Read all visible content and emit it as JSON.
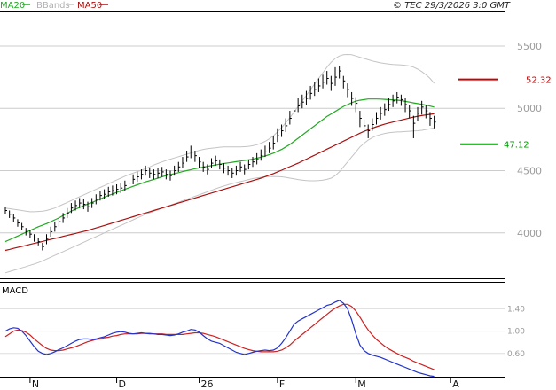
{
  "header": {
    "ma20_label": "MA20",
    "bbands_label": "BBands",
    "ma50_label": "MA50",
    "copyright": "© TEC 29/3/2026 3:0 GMT"
  },
  "levels": {
    "resistance_label": "52.32",
    "resistance_value": 5232,
    "support_label": "47.12",
    "support_value": 4712
  },
  "macd": {
    "label": "MACD"
  },
  "colors": {
    "price": "#000000",
    "ma20": "#22aa22",
    "ma50": "#aa1111",
    "bbands": "#c4c4c4",
    "grid": "#cccccc",
    "resistance": "#cc0000",
    "support": "#009900",
    "macd_line": "#2233cc",
    "signal_line": "#cc2222"
  },
  "chart_data": [
    {
      "type": "line",
      "name": "price-panel",
      "y_ticks": [
        {
          "value": 4000,
          "label": "4000"
        },
        {
          "value": 4500,
          "label": "4500"
        },
        {
          "value": 5000,
          "label": "5000"
        },
        {
          "value": 5500,
          "label": "5500"
        }
      ],
      "ylim": [
        3650,
        5770
      ],
      "x_ticks": [
        {
          "index": 6,
          "label": "N"
        },
        {
          "index": 27,
          "label": "D"
        },
        {
          "index": 47,
          "label": "26"
        },
        {
          "index": 66,
          "label": "F"
        },
        {
          "index": 85,
          "label": "M"
        },
        {
          "index": 108,
          "label": "A"
        }
      ],
      "close": [
        4180,
        4150,
        4120,
        4080,
        4050,
        4010,
        3990,
        3960,
        3930,
        3890,
        3950,
        4010,
        4050,
        4090,
        4120,
        4160,
        4200,
        4220,
        4240,
        4230,
        4210,
        4240,
        4270,
        4300,
        4310,
        4330,
        4340,
        4350,
        4360,
        4380,
        4400,
        4430,
        4450,
        4470,
        4500,
        4480,
        4470,
        4480,
        4490,
        4470,
        4460,
        4500,
        4530,
        4560,
        4610,
        4650,
        4620,
        4570,
        4530,
        4510,
        4560,
        4580,
        4550,
        4520,
        4500,
        4480,
        4500,
        4530,
        4510,
        4550,
        4570,
        4590,
        4620,
        4650,
        4680,
        4720,
        4780,
        4820,
        4860,
        4920,
        4980,
        5020,
        5050,
        5080,
        5120,
        5150,
        5180,
        5210,
        5240,
        5200,
        5250,
        5300,
        5220,
        5150,
        5080,
        5040,
        4920,
        4860,
        4820,
        4870,
        4920,
        4960,
        4990,
        5030,
        5060,
        5090,
        5070,
        5030,
        4980,
        4880,
        4960,
        5010,
        4980,
        4920,
        4890
      ],
      "high": [
        4210,
        4180,
        4150,
        4110,
        4080,
        4040,
        4020,
        3990,
        3960,
        3920,
        3990,
        4050,
        4090,
        4130,
        4160,
        4200,
        4240,
        4260,
        4280,
        4270,
        4250,
        4280,
        4310,
        4340,
        4350,
        4370,
        4380,
        4390,
        4400,
        4420,
        4440,
        4470,
        4490,
        4510,
        4540,
        4520,
        4510,
        4520,
        4530,
        4510,
        4500,
        4540,
        4570,
        4610,
        4660,
        4700,
        4660,
        4610,
        4570,
        4550,
        4600,
        4620,
        4590,
        4560,
        4540,
        4520,
        4540,
        4570,
        4550,
        4590,
        4610,
        4640,
        4670,
        4700,
        4730,
        4780,
        4840,
        4870,
        4920,
        4980,
        5040,
        5080,
        5110,
        5140,
        5180,
        5210,
        5240,
        5270,
        5300,
        5260,
        5330,
        5340,
        5260,
        5200,
        5130,
        5090,
        4980,
        4910,
        4870,
        4920,
        4970,
        5010,
        5040,
        5080,
        5110,
        5130,
        5110,
        5080,
        5030,
        4940,
        5010,
        5060,
        5030,
        4970,
        4940
      ],
      "low": [
        4150,
        4120,
        4090,
        4050,
        4020,
        3980,
        3960,
        3930,
        3900,
        3860,
        3910,
        3970,
        4010,
        4050,
        4080,
        4120,
        4160,
        4180,
        4200,
        4190,
        4170,
        4200,
        4230,
        4260,
        4270,
        4290,
        4300,
        4310,
        4320,
        4340,
        4360,
        4390,
        4410,
        4430,
        4460,
        4440,
        4430,
        4440,
        4450,
        4430,
        4420,
        4460,
        4490,
        4520,
        4570,
        4600,
        4570,
        4520,
        4490,
        4470,
        4520,
        4540,
        4510,
        4480,
        4460,
        4440,
        4460,
        4490,
        4470,
        4510,
        4530,
        4550,
        4580,
        4610,
        4640,
        4670,
        4730,
        4770,
        4810,
        4870,
        4930,
        4970,
        5000,
        5030,
        5070,
        5100,
        5130,
        5160,
        5190,
        5140,
        5180,
        5240,
        5160,
        5090,
        5020,
        4970,
        4850,
        4800,
        4760,
        4820,
        4870,
        4910,
        4940,
        4980,
        5010,
        5040,
        5020,
        4970,
        4920,
        4760,
        4900,
        4950,
        4920,
        4860,
        4840
      ],
      "ma20": [
        3930,
        3945,
        3960,
        3975,
        3990,
        4005,
        4020,
        4035,
        4050,
        4062,
        4075,
        4090,
        4105,
        4120,
        4140,
        4158,
        4175,
        4190,
        4205,
        4218,
        4232,
        4245,
        4258,
        4272,
        4286,
        4300,
        4312,
        4325,
        4338,
        4350,
        4362,
        4374,
        4386,
        4398,
        4410,
        4420,
        4430,
        4440,
        4450,
        4460,
        4468,
        4476,
        4484,
        4492,
        4500,
        4508,
        4516,
        4522,
        4528,
        4534,
        4540,
        4546,
        4552,
        4557,
        4562,
        4567,
        4572,
        4577,
        4582,
        4587,
        4592,
        4600,
        4608,
        4618,
        4628,
        4640,
        4655,
        4670,
        4690,
        4710,
        4735,
        4760,
        4785,
        4810,
        4835,
        4860,
        4885,
        4910,
        4935,
        4955,
        4975,
        4995,
        5015,
        5030,
        5045,
        5058,
        5065,
        5070,
        5075,
        5075,
        5075,
        5074,
        5072,
        5070,
        5068,
        5066,
        5062,
        5056,
        5050,
        5044,
        5038,
        5032,
        5026,
        5018,
        5010
      ],
      "ma50": [
        3860,
        3868,
        3876,
        3884,
        3892,
        3900,
        3908,
        3916,
        3924,
        3932,
        3940,
        3948,
        3956,
        3964,
        3972,
        3980,
        3988,
        3996,
        4004,
        4012,
        4020,
        4030,
        4040,
        4050,
        4060,
        4070,
        4080,
        4090,
        4100,
        4110,
        4120,
        4130,
        4140,
        4150,
        4160,
        4170,
        4180,
        4190,
        4200,
        4210,
        4220,
        4230,
        4240,
        4250,
        4260,
        4270,
        4280,
        4290,
        4300,
        4310,
        4320,
        4330,
        4340,
        4350,
        4360,
        4370,
        4380,
        4390,
        4400,
        4410,
        4420,
        4430,
        4440,
        4452,
        4464,
        4476,
        4490,
        4504,
        4518,
        4532,
        4546,
        4560,
        4576,
        4592,
        4608,
        4624,
        4640,
        4656,
        4672,
        4688,
        4704,
        4720,
        4736,
        4752,
        4768,
        4784,
        4800,
        4815,
        4828,
        4840,
        4852,
        4863,
        4873,
        4882,
        4890,
        4898,
        4906,
        4914,
        4922,
        4930,
        4936,
        4942,
        4947,
        4952,
        4956
      ],
      "bb_upper": [
        4200,
        4195,
        4190,
        4185,
        4180,
        4175,
        4170,
        4170,
        4172,
        4175,
        4180,
        4190,
        4200,
        4215,
        4230,
        4245,
        4260,
        4275,
        4290,
        4305,
        4320,
        4335,
        4350,
        4365,
        4380,
        4395,
        4410,
        4425,
        4440,
        4455,
        4468,
        4480,
        4492,
        4504,
        4516,
        4530,
        4545,
        4558,
        4570,
        4582,
        4592,
        4602,
        4612,
        4622,
        4632,
        4642,
        4652,
        4662,
        4670,
        4676,
        4680,
        4684,
        4688,
        4690,
        4690,
        4690,
        4690,
        4690,
        4692,
        4695,
        4700,
        4708,
        4720,
        4735,
        4755,
        4780,
        4810,
        4845,
        4885,
        4925,
        4970,
        5015,
        5060,
        5105,
        5150,
        5195,
        5240,
        5285,
        5330,
        5370,
        5400,
        5420,
        5430,
        5432,
        5430,
        5420,
        5410,
        5400,
        5390,
        5380,
        5372,
        5365,
        5360,
        5356,
        5352,
        5350,
        5348,
        5345,
        5340,
        5330,
        5315,
        5295,
        5270,
        5240,
        5200
      ],
      "bb_lower": [
        3680,
        3690,
        3700,
        3710,
        3720,
        3730,
        3740,
        3750,
        3762,
        3775,
        3790,
        3805,
        3820,
        3835,
        3850,
        3865,
        3880,
        3895,
        3910,
        3925,
        3940,
        3955,
        3970,
        3985,
        4000,
        4015,
        4030,
        4045,
        4060,
        4075,
        4090,
        4105,
        4120,
        4135,
        4150,
        4162,
        4174,
        4186,
        4198,
        4210,
        4222,
        4234,
        4246,
        4258,
        4270,
        4282,
        4294,
        4306,
        4318,
        4330,
        4342,
        4354,
        4366,
        4376,
        4386,
        4396,
        4404,
        4412,
        4420,
        4428,
        4436,
        4442,
        4446,
        4450,
        4452,
        4453,
        4452,
        4450,
        4446,
        4440,
        4434,
        4428,
        4424,
        4420,
        4418,
        4418,
        4420,
        4424,
        4430,
        4440,
        4460,
        4490,
        4530,
        4570,
        4610,
        4650,
        4690,
        4720,
        4745,
        4765,
        4780,
        4790,
        4798,
        4804,
        4808,
        4810,
        4812,
        4814,
        4816,
        4818,
        4820,
        4824,
        4830,
        4836,
        4842
      ]
    },
    {
      "type": "line",
      "name": "macd-panel",
      "y_ticks": [
        {
          "value": 60,
          "label": "0.60"
        },
        {
          "value": 100,
          "label": "1.00"
        },
        {
          "value": 140,
          "label": "1.40"
        }
      ],
      "ylim": [
        20,
        185
      ],
      "macd": [
        100,
        104,
        106,
        105,
        100,
        92,
        82,
        72,
        64,
        60,
        58,
        60,
        63,
        67,
        70,
        74,
        78,
        82,
        85,
        86,
        86,
        85,
        86,
        88,
        90,
        93,
        96,
        98,
        99,
        98,
        96,
        95,
        96,
        97,
        96,
        95,
        95,
        94,
        94,
        93,
        92,
        93,
        95,
        98,
        100,
        103,
        102,
        98,
        92,
        86,
        82,
        80,
        78,
        74,
        70,
        66,
        62,
        60,
        58,
        60,
        62,
        64,
        65,
        66,
        65,
        66,
        70,
        78,
        88,
        100,
        112,
        118,
        122,
        126,
        130,
        134,
        138,
        142,
        146,
        148,
        152,
        155,
        150,
        140,
        120,
        95,
        75,
        65,
        60,
        57,
        55,
        53,
        50,
        47,
        44,
        41,
        38,
        35,
        32,
        29,
        26,
        24,
        22,
        20,
        19
      ],
      "signal": [
        90,
        95,
        100,
        102,
        101,
        98,
        93,
        86,
        80,
        74,
        69,
        66,
        65,
        65,
        66,
        68,
        70,
        72,
        75,
        78,
        81,
        83,
        85,
        86,
        88,
        89,
        91,
        92,
        94,
        95,
        95,
        95,
        95,
        96,
        96,
        96,
        95,
        95,
        95,
        94,
        94,
        94,
        94,
        94,
        95,
        96,
        97,
        97,
        96,
        94,
        92,
        90,
        87,
        84,
        81,
        78,
        75,
        72,
        69,
        67,
        65,
        64,
        63,
        63,
        63,
        63,
        64,
        66,
        70,
        75,
        82,
        88,
        94,
        100,
        106,
        112,
        118,
        124,
        130,
        136,
        141,
        145,
        148,
        148,
        144,
        136,
        125,
        113,
        102,
        93,
        85,
        79,
        73,
        68,
        64,
        60,
        56,
        53,
        50,
        46,
        43,
        40,
        37,
        34,
        31
      ]
    }
  ]
}
